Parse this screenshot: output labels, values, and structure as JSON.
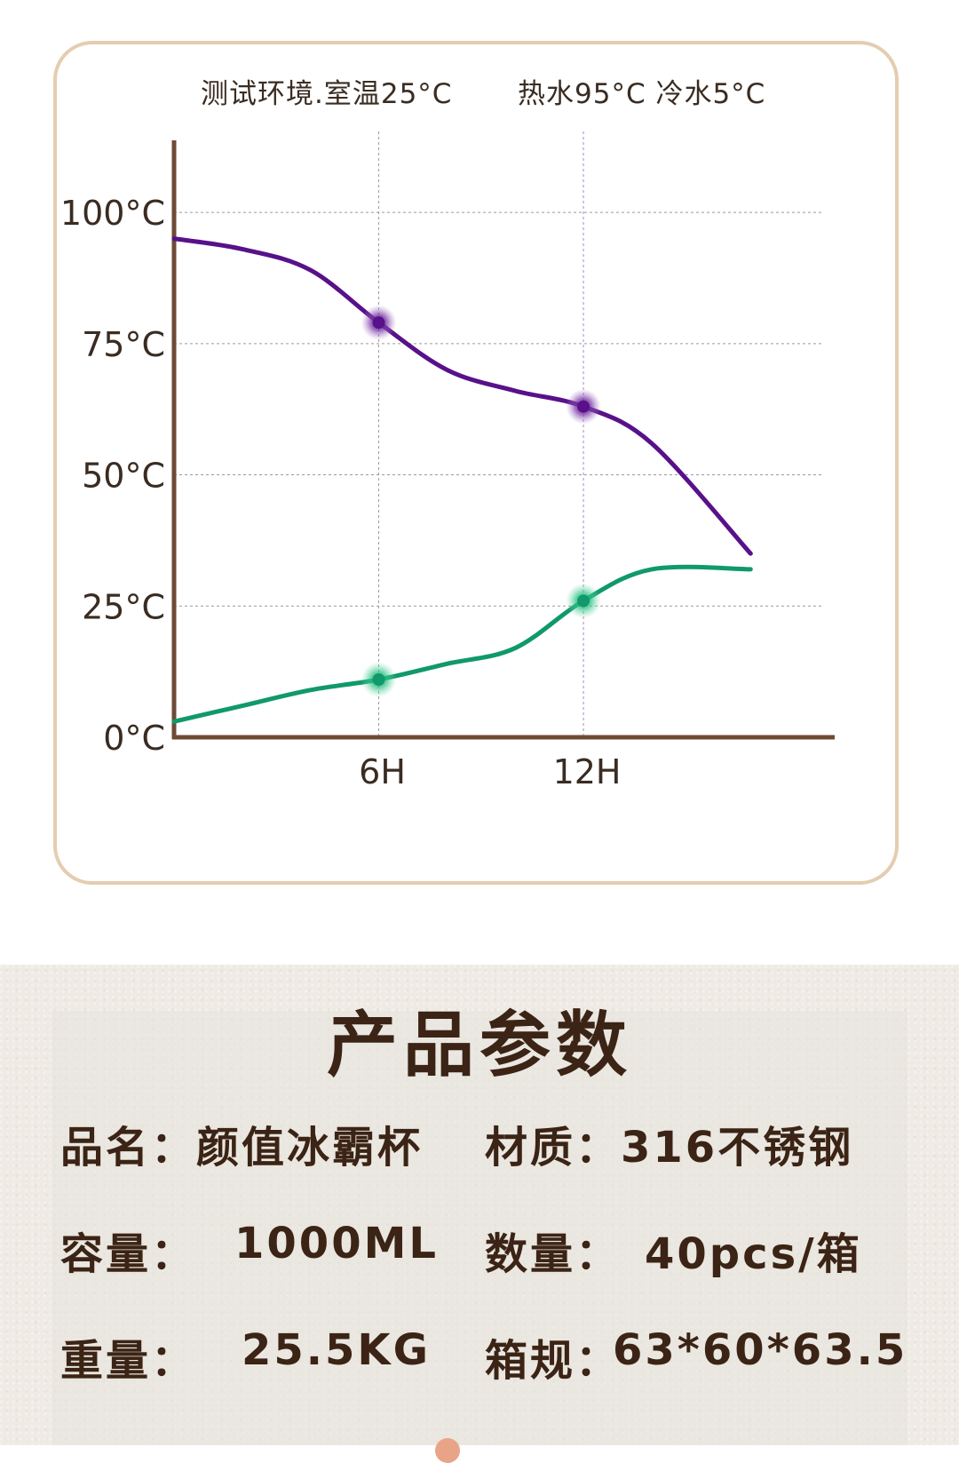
{
  "chart_data": {
    "type": "line",
    "title": "测试环境.室温25°C",
    "subtitle": "热水95°C  冷水5°C",
    "x": [
      0,
      2,
      4,
      6,
      8,
      10,
      12,
      14,
      16.9
    ],
    "x_tick_labels": [
      {
        "x": 6,
        "label": "6H"
      },
      {
        "x": 12,
        "label": "12H"
      }
    ],
    "y_tick_labels": [
      {
        "y": 0,
        "label": "0°C"
      },
      {
        "y": 25,
        "label": "25°C"
      },
      {
        "y": 50,
        "label": "50°C"
      },
      {
        "y": 75,
        "label": "75°C"
      },
      {
        "y": 100,
        "label": "100°C"
      }
    ],
    "xlim": [
      0,
      19
    ],
    "ylim": [
      0,
      110
    ],
    "series": [
      {
        "values": [
          95,
          93,
          89,
          79,
          70,
          66,
          63,
          56,
          35
        ],
        "color": "#58118a"
      },
      {
        "values": [
          3,
          6,
          9,
          11,
          14,
          17,
          26,
          32,
          32
        ],
        "color": "#10996a"
      }
    ],
    "markers": [
      {
        "series": 0,
        "x": 6,
        "y": 79,
        "color": "#58118a"
      },
      {
        "series": 0,
        "x": 12,
        "y": 63,
        "color": "#58118a"
      },
      {
        "series": 1,
        "x": 6,
        "y": 11,
        "color": "#10996a"
      },
      {
        "series": 1,
        "x": 12,
        "y": 26,
        "color": "#10996a"
      }
    ],
    "grid": true,
    "axis_color": "#6e4a36"
  },
  "params": {
    "title": "产品参数",
    "name": "品名：颜值冰霸杯",
    "material": "材质：316不锈钢",
    "capacity_label": "容量：",
    "capacity_value": "1000ML",
    "quantity_label": "数量：",
    "quantity_value": "40pcs/箱",
    "weight_label": "重量：",
    "weight_value": "25.5KG",
    "box_label": "箱规：",
    "box_value": "63*60*63.5"
  }
}
